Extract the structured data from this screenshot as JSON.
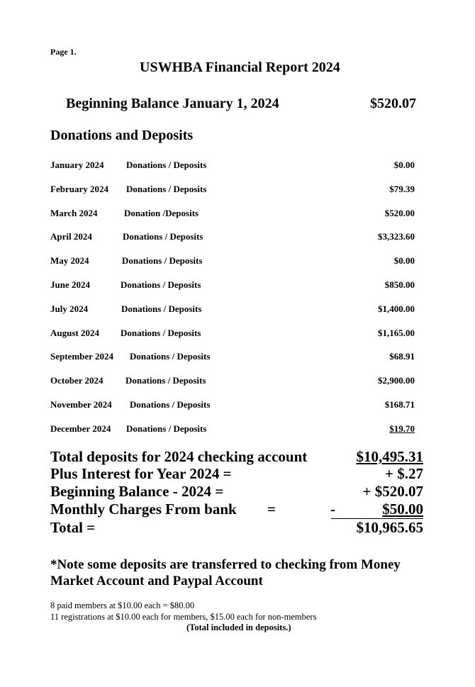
{
  "page_label": "Page 1.",
  "title": "USWHBA Financial Report 2024",
  "beginning_balance": {
    "label": "Beginning Balance January 1, 2024",
    "amount": "$520.07"
  },
  "section_heading": "Donations and Deposits",
  "months": [
    {
      "month": "January 2024",
      "description": "Donations / Deposits",
      "amount": "$0.00"
    },
    {
      "month": "February 2024",
      "description": "Donations / Deposits",
      "amount": "$79.39"
    },
    {
      "month": "March 2024",
      "description": "Donation /Deposits",
      "amount": "$520.00"
    },
    {
      "month": "April 2024",
      "description": "Donations / Deposits",
      "amount": "$3,323.60"
    },
    {
      "month": "May 2024",
      "description": "Donations / Deposits",
      "amount": "$0.00"
    },
    {
      "month": "June 2024",
      "description": "Donations / Deposits",
      "amount": "$850.00"
    },
    {
      "month": "July 2024",
      "description": "Donations / Deposits",
      "amount": "$1,400.00"
    },
    {
      "month": "August 2024",
      "description": "Donations / Deposits",
      "amount": "$1,165.00"
    },
    {
      "month": "September 2024",
      "description": "Donations / Deposits",
      "amount": "$68.91"
    },
    {
      "month": "October 2024",
      "description": "Donations / Deposits",
      "amount": "$2,900.00"
    },
    {
      "month": "November 2024",
      "description": "Donations / Deposits",
      "amount": "$168.71"
    },
    {
      "month": "December 2024",
      "description": "Donations / Deposits",
      "amount": "$19.70"
    }
  ],
  "totals": {
    "total_deposits": {
      "label": "Total deposits for 2024 checking account",
      "amount": "$10,495.31"
    },
    "interest": {
      "label": "Plus Interest for Year 2024 =",
      "amount": "+ $.27"
    },
    "beginning": {
      "label": "Beginning Balance - 2024 =",
      "amount": "+ $520.07"
    },
    "charges": {
      "label": "Monthly Charges From bank",
      "equals": "=",
      "sign": "-",
      "amount": "$50.00"
    },
    "total": {
      "label": "Total =",
      "amount": "$10,965.65"
    }
  },
  "note": {
    "line1": "*Note some deposits are transferred to checking from Money",
    "line2": "Market Account and Paypal Account"
  },
  "footnotes": {
    "members": "8 paid members at $10.00 each = $80.00",
    "registrations": "11 registrations at $10.00 each for members, $15.00 each for non-members",
    "included": "(Total included in deposits.)"
  }
}
